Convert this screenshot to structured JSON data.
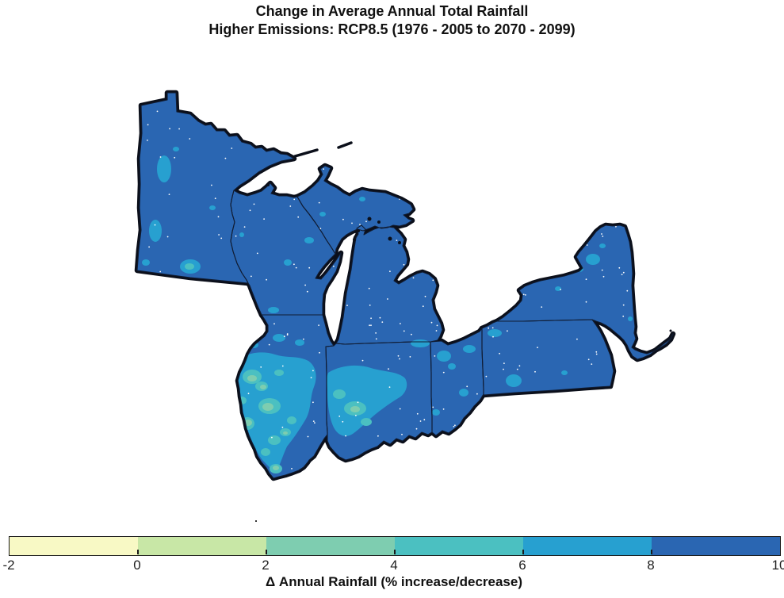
{
  "title": {
    "line1": "Change in Average Annual Total Rainfall",
    "line2": "Higher Emissions: RCP8.5 (1976 - 2005 to 2070 - 2099)"
  },
  "colorbar": {
    "tick_labels": [
      "-2",
      "0",
      "2",
      "4",
      "6",
      "8",
      "10"
    ],
    "bin_edges": [
      -2,
      0,
      2,
      4,
      6,
      8,
      10
    ],
    "bin_colors": [
      "#f8f9c5",
      "#c8e7a6",
      "#7ecdb0",
      "#4bc0c1",
      "#27a0d0",
      "#2a66b2"
    ],
    "axis_label": "Δ Annual Rainfall (% increase/decrease)"
  },
  "chart_data": {
    "type": "heatmap",
    "subtype": "choropleth-climate-map",
    "title": "Change in Average Annual Total Rainfall",
    "subtitle": "Higher Emissions: RCP8.5 (1976 - 2005 to 2070 - 2099)",
    "legend_label": "Δ Annual Rainfall (% increase/decrease)",
    "units": "% change in annual rainfall",
    "scale": {
      "min": -2,
      "max": 10,
      "bin_edges": [
        -2,
        0,
        2,
        4,
        6,
        8,
        10
      ],
      "bin_colors": [
        "#f8f9c5",
        "#c8e7a6",
        "#7ecdb0",
        "#4bc0c1",
        "#27a0d0",
        "#2a66b2"
      ],
      "legend_position": "bottom horizontal colorbar"
    },
    "region": "U.S. Great Lakes / Midwest and Northeast states",
    "states_shown": [
      "Minnesota",
      "Wisconsin",
      "Michigan",
      "Illinois",
      "Indiana",
      "Ohio",
      "Pennsylvania",
      "New York"
    ],
    "values_by_area": [
      {
        "area": "Most of mapped region (MN, WI, MI, northern IL/IN, OH, PA, NY)",
        "change_pct_bin": "8 to 10"
      },
      {
        "area": "Scattered patches in western MN, WI, SE MI, OH, PA, northern NY",
        "change_pct_bin": "6 to 8"
      },
      {
        "area": "Central and southern Illinois, southwestern Indiana",
        "change_pct_bin": "4 to 8"
      },
      {
        "area": "Small pockets in southern Illinois and southwest Indiana",
        "change_pct_bin": "2 to 4"
      },
      {
        "area": "Nowhere on map",
        "change_pct_bin": "-2 to 2 (colors unused on map)"
      }
    ],
    "map_notes": "Great Lakes shown as white cutouts with thick black coastlines; thin dark state borders; tiny white speckle dots scattered over states"
  }
}
